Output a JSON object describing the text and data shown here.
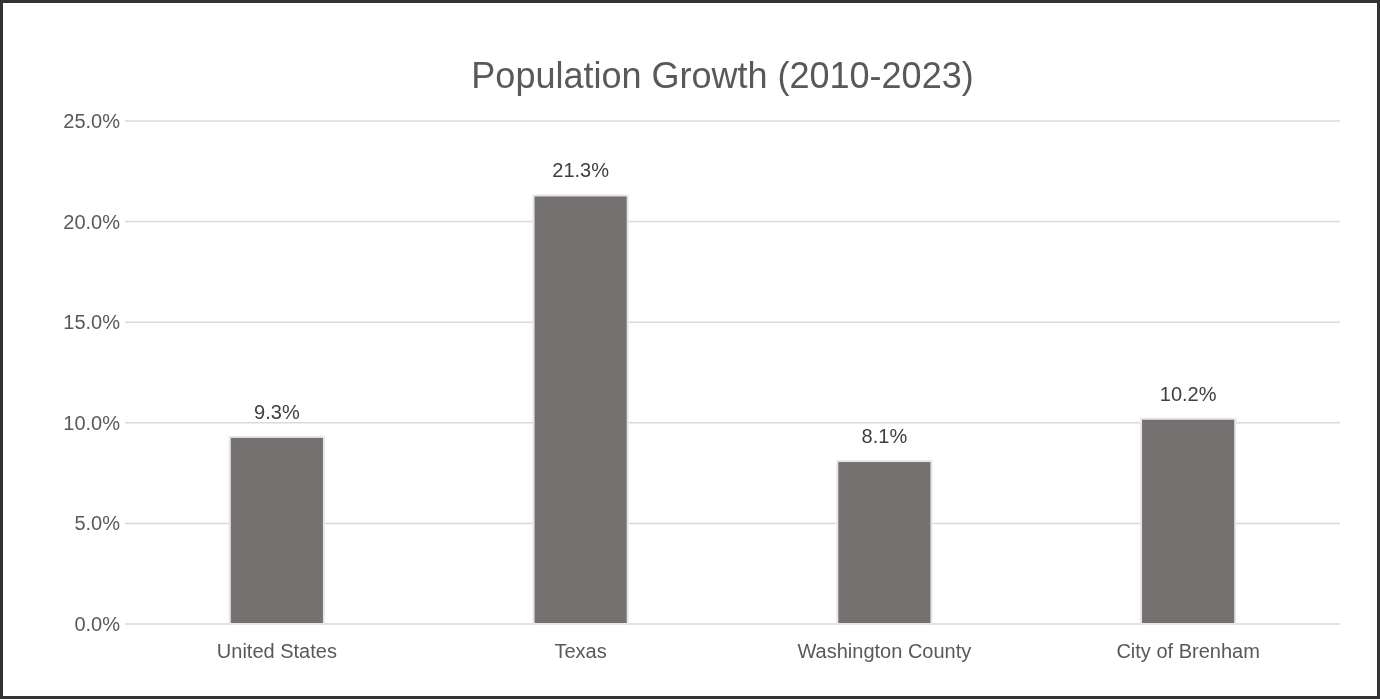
{
  "chart_data": {
    "type": "bar",
    "title": "Population Growth (2010-2023)",
    "categories": [
      "United States",
      "Texas",
      "Washington County",
      "City of Brenham"
    ],
    "values": [
      9.3,
      21.3,
      8.1,
      10.2
    ],
    "value_labels": [
      "9.3%",
      "21.3%",
      "8.1%",
      "10.2%"
    ],
    "color": "#767171",
    "ylim": [
      0,
      25
    ],
    "yticks": [
      {
        "value": 0,
        "label": "0.0%"
      },
      {
        "value": 5,
        "label": "5.0%"
      },
      {
        "value": 10,
        "label": "10.0%"
      },
      {
        "value": 15,
        "label": "15.0%"
      },
      {
        "value": 20,
        "label": "20.0%"
      },
      {
        "value": 25,
        "label": "25.0%"
      }
    ],
    "grid": "y"
  }
}
